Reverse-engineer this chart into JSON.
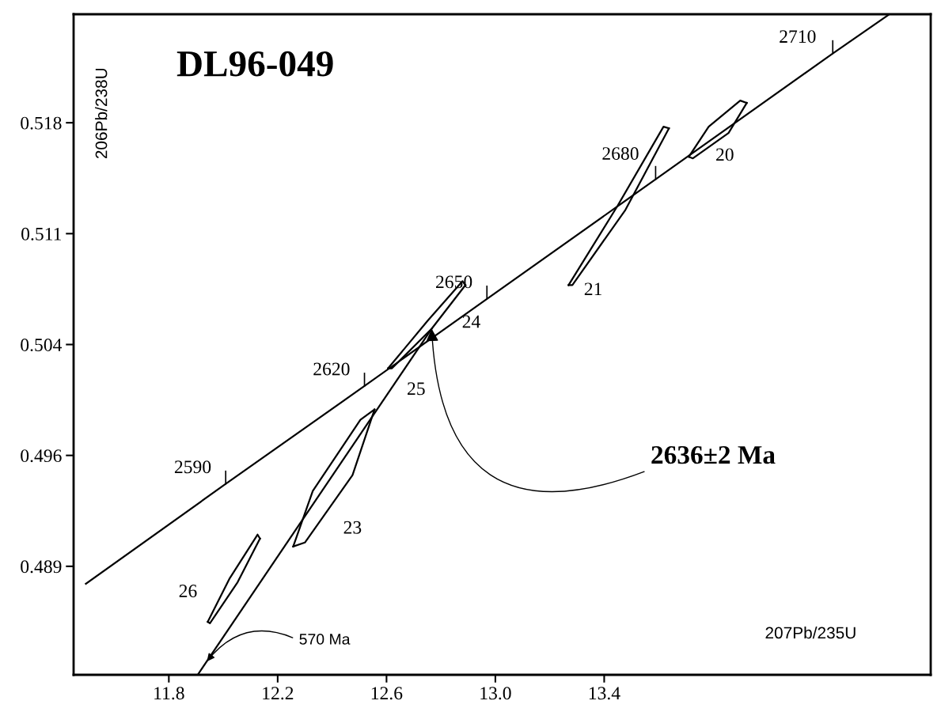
{
  "chart_data": {
    "type": "line",
    "title": "DL96-049",
    "xlabel": "207Pb/235U",
    "ylabel": "206Pb/238U",
    "xlim": [
      11.45,
      14.6
    ],
    "ylim": [
      0.48265,
      0.52435
    ],
    "xticks": [
      {
        "value": 11.8,
        "label": "11.8"
      },
      {
        "value": 12.2,
        "label": "12.2"
      },
      {
        "value": 12.6,
        "label": "12.6"
      },
      {
        "value": 13.0,
        "label": "13.0"
      },
      {
        "value": 13.4,
        "label": "13.4"
      }
    ],
    "yticks": [
      {
        "value": 0.4895,
        "label": "0.489"
      },
      {
        "value": 0.4965,
        "label": "0.496"
      },
      {
        "value": 0.5035,
        "label": "0.504"
      },
      {
        "value": 0.5105,
        "label": "0.511"
      },
      {
        "value": 0.5175,
        "label": "0.518"
      }
    ],
    "grid": false,
    "legend": false,
    "marker": "none",
    "line_style": "solid",
    "series": [
      {
        "color": "#000000",
        "x": [
          11.495,
          12.009,
          12.519,
          12.969,
          13.589,
          14.24,
          14.444
        ],
        "values": [
          0.4884,
          0.4947,
          0.50088,
          0.50638,
          0.51393,
          0.52187,
          0.5243
        ]
      },
      {
        "color": "#000000",
        "x": [
          11.908,
          12.766
        ],
        "values": [
          0.4827,
          0.5045
        ]
      },
      {
        "color": "#000000",
        "x": [
          13.711,
          13.784,
          13.9,
          13.924
        ],
        "values": [
          0.51535,
          0.51725,
          0.5189,
          0.51875
        ]
      },
      {
        "color": "#000000",
        "x": [
          13.711,
          13.726,
          13.857,
          13.924
        ],
        "values": [
          0.51535,
          0.51525,
          0.51685,
          0.51875
        ]
      },
      {
        "color": "#000000",
        "x": [
          13.269,
          13.449,
          13.618,
          13.638
        ],
        "values": [
          0.50725,
          0.51225,
          0.51725,
          0.51715
        ]
      },
      {
        "color": "#000000",
        "x": [
          13.269,
          13.283,
          13.478,
          13.638
        ],
        "values": [
          0.50725,
          0.50725,
          0.512,
          0.51715
        ]
      },
      {
        "color": "#000000",
        "x": [
          12.606,
          12.751,
          12.879,
          12.89
        ],
        "values": [
          0.502,
          0.505,
          0.5075,
          0.50725
        ]
      },
      {
        "color": "#000000",
        "x": [
          12.606,
          12.62,
          12.766,
          12.89
        ],
        "values": [
          0.502,
          0.502,
          0.5045,
          0.50725
        ]
      },
      {
        "color": "#000000",
        "x": [
          12.257,
          12.329,
          12.504,
          12.556
        ],
        "values": [
          0.49075,
          0.49425,
          0.49875,
          0.4994
        ]
      },
      {
        "color": "#000000",
        "x": [
          12.257,
          12.3,
          12.475,
          12.556
        ],
        "values": [
          0.49075,
          0.491,
          0.49525,
          0.4994
        ]
      },
      {
        "color": "#000000",
        "x": [
          11.943,
          12.024,
          12.126,
          12.135
        ],
        "values": [
          0.486,
          0.48875,
          0.4915,
          0.49125
        ]
      },
      {
        "color": "#000000",
        "x": [
          11.943,
          11.951,
          12.053,
          12.135
        ],
        "values": [
          0.486,
          0.4859,
          0.4885,
          0.49125
        ]
      }
    ],
    "annotations": [
      {
        "text": "2590",
        "x": 12.009,
        "y": 0.4947
      },
      {
        "text": "2620",
        "x": 12.519,
        "y": 0.50088
      },
      {
        "text": "2650",
        "x": 12.969,
        "y": 0.50638
      },
      {
        "text": "2680",
        "x": 13.589,
        "y": 0.51393
      },
      {
        "text": "2710",
        "x": 14.24,
        "y": 0.52187
      },
      {
        "text": "20",
        "x": 13.726,
        "y": 0.51525
      },
      {
        "text": "21",
        "x": 13.283,
        "y": 0.50725
      },
      {
        "text": "24",
        "x": 12.766,
        "y": 0.5045
      },
      {
        "text": "25",
        "x": 12.62,
        "y": 0.502
      },
      {
        "text": "23",
        "x": 12.475,
        "y": 0.49525
      },
      {
        "text": "26",
        "x": 11.951,
        "y": 0.4859
      },
      {
        "text": "570 Ma",
        "x": 11.94,
        "y": 0.4835
      },
      {
        "text": "2636±2 Ma",
        "x": 12.766,
        "y": 0.5045
      }
    ]
  }
}
